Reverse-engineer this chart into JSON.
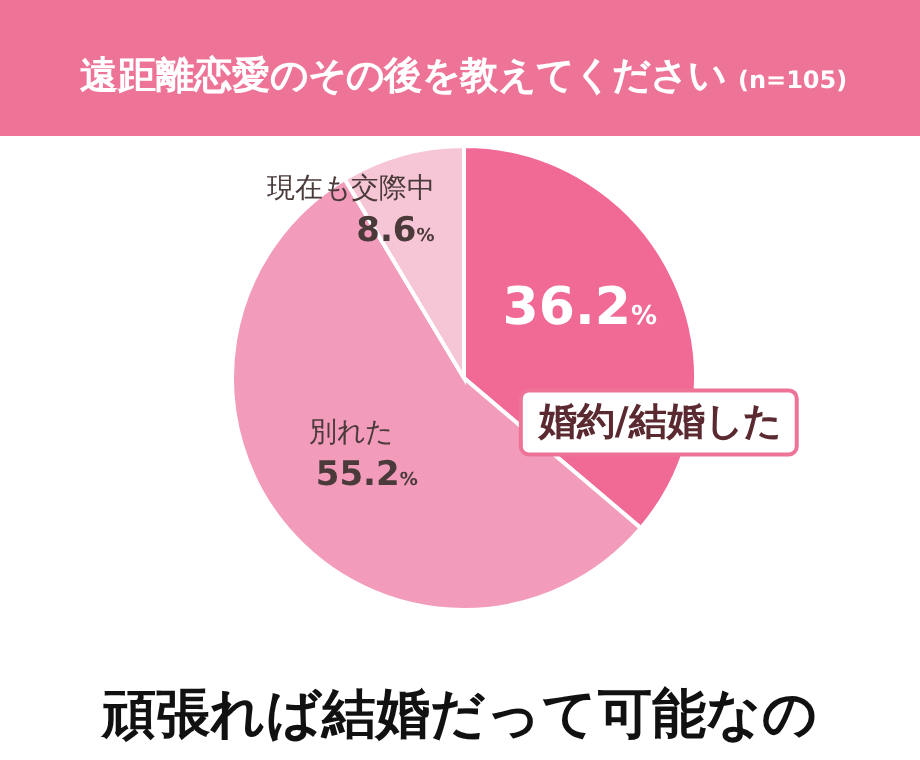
{
  "chart_data": {
    "type": "pie",
    "title": "遠距離恋愛のその後を教えてください",
    "subtitle": "(n=105)",
    "categories": [
      "婚約/結婚した",
      "別れた",
      "現在も交際中"
    ],
    "values": [
      36.2,
      55.2,
      8.6
    ],
    "colors": [
      "#f06a95",
      "#f29bba",
      "#f7c6d6"
    ],
    "value_labels": [
      "36.2%",
      "55.2%",
      "8.6%"
    ],
    "annotations": [
      "頑張れば結婚だって可能なの"
    ]
  }
}
